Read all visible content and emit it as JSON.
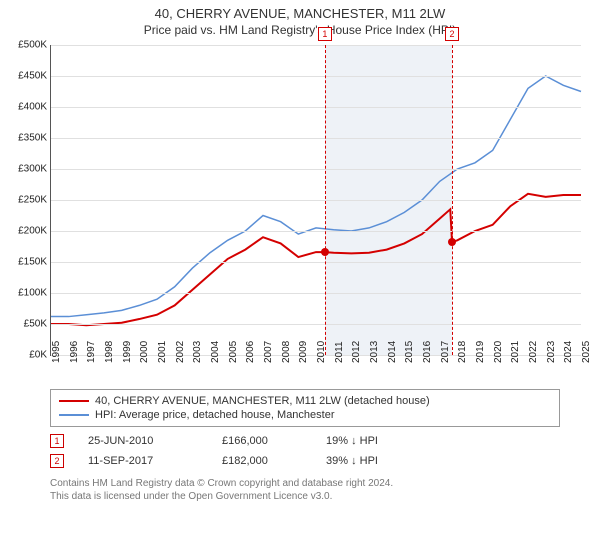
{
  "title": "40, CHERRY AVENUE, MANCHESTER, M11 2LW",
  "subtitle": "Price paid vs. HM Land Registry's House Price Index (HPI)",
  "chart": {
    "type": "line",
    "xlim": [
      1995,
      2025
    ],
    "ylim": [
      0,
      500
    ],
    "ytick_step": 50,
    "y_prefix": "£",
    "y_suffix": "K",
    "x_years": [
      1995,
      1996,
      1997,
      1998,
      1999,
      2000,
      2001,
      2002,
      2003,
      2004,
      2005,
      2006,
      2007,
      2008,
      2009,
      2010,
      2011,
      2012,
      2013,
      2014,
      2015,
      2016,
      2017,
      2018,
      2019,
      2020,
      2021,
      2022,
      2023,
      2024,
      2025
    ],
    "background_color": "#ffffff",
    "grid_color": "#e0e0e0",
    "shaded_region": {
      "from": 2010.5,
      "to": 2017.7,
      "color": "#eef2f7"
    },
    "series": [
      {
        "label": "40, CHERRY AVENUE, MANCHESTER, M11 2LW (detached house)",
        "color": "#d40000",
        "width": 2,
        "points": [
          [
            1995,
            50
          ],
          [
            1996,
            50
          ],
          [
            1997,
            48
          ],
          [
            1998,
            50
          ],
          [
            1999,
            52
          ],
          [
            2000,
            58
          ],
          [
            2001,
            65
          ],
          [
            2002,
            80
          ],
          [
            2003,
            105
          ],
          [
            2004,
            130
          ],
          [
            2005,
            155
          ],
          [
            2006,
            170
          ],
          [
            2007,
            190
          ],
          [
            2008,
            180
          ],
          [
            2009,
            158
          ],
          [
            2010,
            166
          ],
          [
            2010.5,
            166
          ],
          [
            2011,
            165
          ],
          [
            2012,
            164
          ],
          [
            2013,
            165
          ],
          [
            2014,
            170
          ],
          [
            2015,
            180
          ],
          [
            2016,
            195
          ],
          [
            2017,
            220
          ],
          [
            2017.6,
            235
          ],
          [
            2017.7,
            182
          ],
          [
            2018,
            185
          ],
          [
            2019,
            200
          ],
          [
            2020,
            210
          ],
          [
            2021,
            240
          ],
          [
            2022,
            260
          ],
          [
            2023,
            255
          ],
          [
            2024,
            258
          ],
          [
            2025,
            258
          ]
        ]
      },
      {
        "label": "HPI: Average price, detached house, Manchester",
        "color": "#5b8fd6",
        "width": 1.5,
        "points": [
          [
            1995,
            62
          ],
          [
            1996,
            62
          ],
          [
            1997,
            65
          ],
          [
            1998,
            68
          ],
          [
            1999,
            72
          ],
          [
            2000,
            80
          ],
          [
            2001,
            90
          ],
          [
            2002,
            110
          ],
          [
            2003,
            140
          ],
          [
            2004,
            165
          ],
          [
            2005,
            185
          ],
          [
            2006,
            200
          ],
          [
            2007,
            225
          ],
          [
            2008,
            215
          ],
          [
            2009,
            195
          ],
          [
            2010,
            205
          ],
          [
            2011,
            202
          ],
          [
            2012,
            200
          ],
          [
            2013,
            205
          ],
          [
            2014,
            215
          ],
          [
            2015,
            230
          ],
          [
            2016,
            250
          ],
          [
            2017,
            280
          ],
          [
            2018,
            300
          ],
          [
            2019,
            310
          ],
          [
            2020,
            330
          ],
          [
            2021,
            380
          ],
          [
            2022,
            430
          ],
          [
            2023,
            450
          ],
          [
            2024,
            435
          ],
          [
            2025,
            425
          ]
        ]
      }
    ],
    "markers": [
      {
        "n": "1",
        "x": 2010.5,
        "y": 166,
        "line_color": "#d40000"
      },
      {
        "n": "2",
        "x": 2017.7,
        "y": 182,
        "line_color": "#d40000"
      }
    ]
  },
  "sales": [
    {
      "n": "1",
      "date": "25-JUN-2010",
      "price": "£166,000",
      "hpi": "19% ↓ HPI"
    },
    {
      "n": "2",
      "date": "11-SEP-2017",
      "price": "£182,000",
      "hpi": "39% ↓ HPI"
    }
  ],
  "footer1": "Contains HM Land Registry data © Crown copyright and database right 2024.",
  "footer2": "This data is licensed under the Open Government Licence v3.0."
}
